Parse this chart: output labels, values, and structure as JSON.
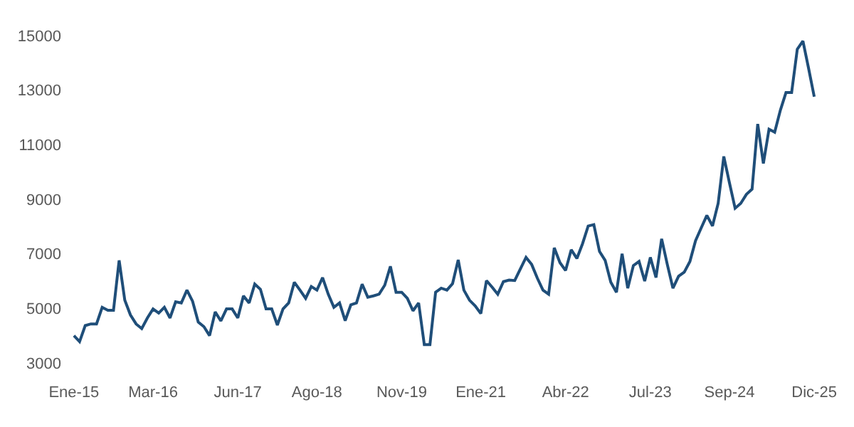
{
  "chart_data": {
    "type": "line",
    "categories": [
      "Ene-15",
      null,
      null,
      null,
      null,
      null,
      null,
      null,
      null,
      null,
      null,
      null,
      null,
      null,
      "Mar-16",
      null,
      null,
      null,
      null,
      null,
      null,
      null,
      null,
      null,
      null,
      null,
      null,
      null,
      null,
      "Jun-17",
      null,
      null,
      null,
      null,
      null,
      null,
      null,
      null,
      null,
      null,
      null,
      null,
      null,
      "Ago-18",
      null,
      null,
      null,
      null,
      null,
      null,
      null,
      null,
      null,
      null,
      null,
      null,
      null,
      null,
      "Nov-19",
      null,
      null,
      null,
      null,
      null,
      null,
      null,
      null,
      null,
      null,
      null,
      null,
      null,
      "Ene-21",
      null,
      null,
      null,
      null,
      null,
      null,
      null,
      null,
      null,
      null,
      null,
      null,
      null,
      null,
      "Abr-22",
      null,
      null,
      null,
      null,
      null,
      null,
      null,
      null,
      null,
      null,
      null,
      null,
      null,
      null,
      "Jul-23",
      null,
      null,
      null,
      null,
      null,
      null,
      null,
      null,
      null,
      null,
      null,
      null,
      null,
      "Sep-24",
      null,
      null,
      null,
      null,
      null,
      null,
      null,
      null,
      null,
      null,
      null,
      null,
      null,
      null,
      "Dic-25"
    ],
    "series": [
      {
        "color": "#1f4e79",
        "values": [
          4000,
          3780,
          4370,
          4430,
          4430,
          5040,
          4930,
          4930,
          6760,
          5300,
          4760,
          4430,
          4260,
          4650,
          4980,
          4830,
          5040,
          4650,
          5240,
          5200,
          5670,
          5260,
          4500,
          4330,
          4000,
          4870,
          4540,
          4980,
          4980,
          4650,
          5460,
          5200,
          5890,
          5700,
          4980,
          4980,
          4390,
          4980,
          5200,
          5960,
          5670,
          5370,
          5800,
          5670,
          6130,
          5520,
          5040,
          5200,
          4550,
          5130,
          5200,
          5890,
          5410,
          5460,
          5520,
          5850,
          6540,
          5590,
          5590,
          5370,
          4910,
          5200,
          3670,
          3670,
          5590,
          5740,
          5670,
          5910,
          6780,
          5670,
          5300,
          5090,
          4810,
          6020,
          5780,
          5520,
          5980,
          6040,
          6020,
          6450,
          6870,
          6610,
          6110,
          5670,
          5520,
          7220,
          6680,
          6390,
          7150,
          6830,
          7370,
          8020,
          8070,
          7090,
          6760,
          5960,
          5590,
          7000,
          5740,
          6570,
          6720,
          6000,
          6870,
          6130,
          7550,
          6610,
          5740,
          6180,
          6330,
          6720,
          7480,
          7950,
          8410,
          8020,
          8850,
          10570,
          9600,
          8670,
          8850,
          9180,
          9370,
          11760,
          10310,
          11570,
          11460,
          12260,
          12910,
          12910,
          14500,
          14800,
          13800,
          12760
        ]
      }
    ],
    "ylim": [
      3000,
      15000
    ],
    "yticks": [
      3000,
      5000,
      7000,
      9000,
      11000,
      13000,
      15000
    ],
    "grid": false,
    "line_style": "solid",
    "marker": "none"
  }
}
